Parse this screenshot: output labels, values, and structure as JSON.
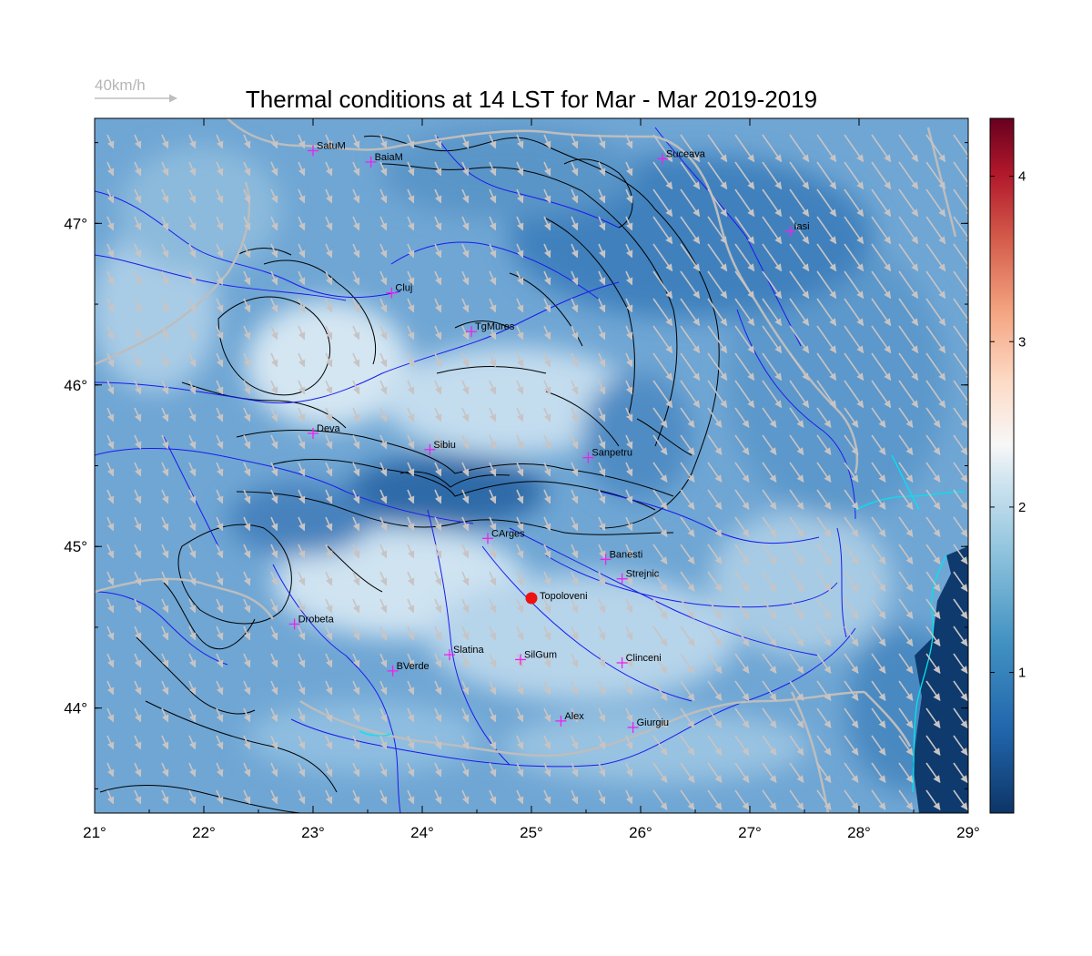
{
  "title": "Thermal conditions at 14 LST for Mar - Mar  2019-2019",
  "wind_scale": {
    "label": "40km/h",
    "color": "#bdbdbd"
  },
  "map": {
    "lon_range": [
      21,
      29
    ],
    "lat_range": [
      43.35,
      47.65
    ],
    "x_ticks": [
      "21°",
      "22°",
      "23°",
      "24°",
      "25°",
      "26°",
      "27°",
      "28°",
      "29°"
    ],
    "y_ticks": [
      "44°",
      "45°",
      "46°",
      "47°"
    ],
    "field_colormap": "RdBu_r",
    "colors": {
      "rivers": "#1a1aee",
      "borders": "#bdbdbd",
      "contours": "#000000",
      "coast": "#00e5ee",
      "markers": "#ee22ee",
      "site": "#ee1111",
      "wind_arrows": "#c8c4c4"
    }
  },
  "colorbar": {
    "range": [
      0.15,
      4.35
    ],
    "ticks": [
      "1",
      "2",
      "3",
      "4"
    ]
  },
  "cities": [
    {
      "name": "SatuM",
      "lon": 23.0,
      "lat": 47.45
    },
    {
      "name": "BaiaM",
      "lon": 23.53,
      "lat": 47.38
    },
    {
      "name": "Suceava",
      "lon": 26.2,
      "lat": 47.4
    },
    {
      "name": "Iasi",
      "lon": 27.37,
      "lat": 46.95
    },
    {
      "name": "Cluj",
      "lon": 23.72,
      "lat": 46.57
    },
    {
      "name": "TgMures",
      "lon": 24.45,
      "lat": 46.33
    },
    {
      "name": "Deva",
      "lon": 23.0,
      "lat": 45.7
    },
    {
      "name": "Sibiu",
      "lon": 24.07,
      "lat": 45.6
    },
    {
      "name": "Sanpetru",
      "lon": 25.52,
      "lat": 45.55
    },
    {
      "name": "CArges",
      "lon": 24.6,
      "lat": 45.05
    },
    {
      "name": "Banesti",
      "lon": 25.68,
      "lat": 44.92
    },
    {
      "name": "Strejnic",
      "lon": 25.83,
      "lat": 44.8
    },
    {
      "name": "Drobeta",
      "lon": 22.83,
      "lat": 44.52
    },
    {
      "name": "Slatina",
      "lon": 24.25,
      "lat": 44.33
    },
    {
      "name": "SilGum",
      "lon": 24.9,
      "lat": 44.3
    },
    {
      "name": "Clinceni",
      "lon": 25.83,
      "lat": 44.28
    },
    {
      "name": "BVerde",
      "lon": 23.73,
      "lat": 44.23
    },
    {
      "name": "Alex",
      "lon": 25.27,
      "lat": 43.92
    },
    {
      "name": "Giurgiu",
      "lon": 25.93,
      "lat": 43.88
    }
  ],
  "site": {
    "name": "Topoloveni",
    "lon": 25.0,
    "lat": 44.68
  }
}
